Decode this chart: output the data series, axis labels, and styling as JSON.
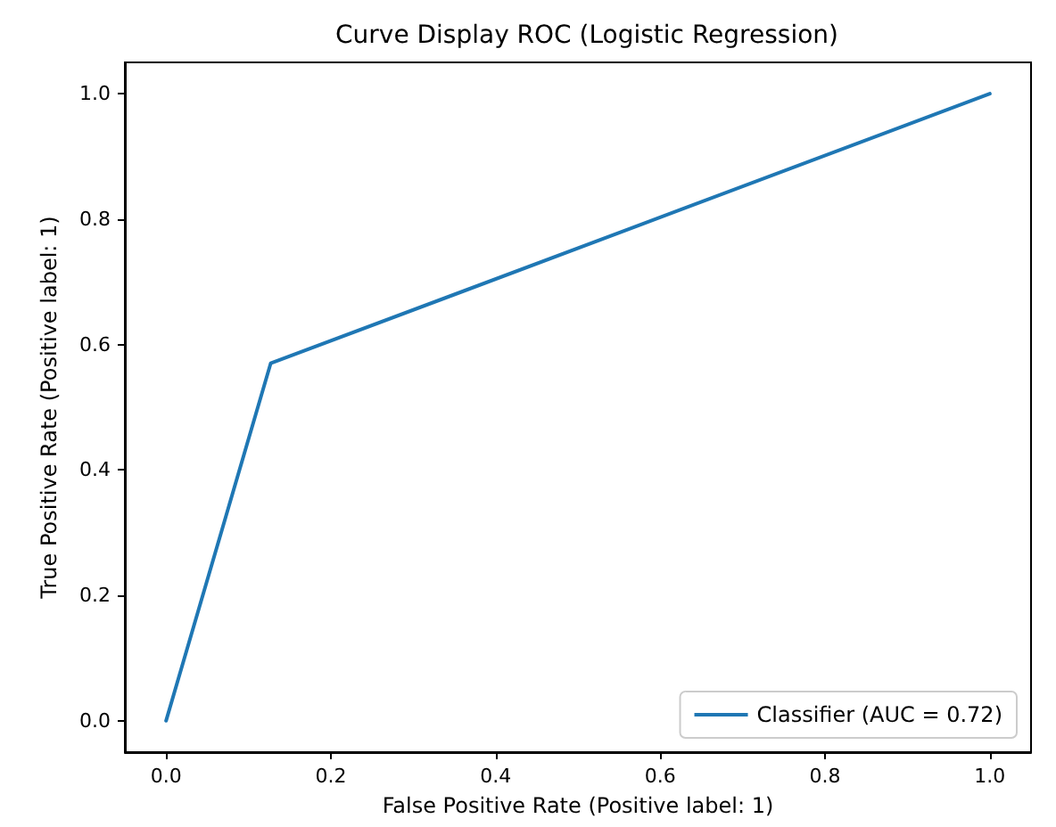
{
  "chart_data": {
    "type": "line",
    "title": "Curve Display ROC (Logistic Regression)",
    "xlabel": "False Positive Rate (Positive label: 1)",
    "ylabel": "True Positive Rate (Positive label: 1)",
    "series": [
      {
        "name": "Classifier (AUC = 0.72)",
        "color": "#1f77b4",
        "x": [
          0,
          0.127,
          1
        ],
        "values": [
          0,
          0.57,
          1
        ]
      }
    ],
    "xlim": [
      -0.05,
      1.05
    ],
    "ylim": [
      -0.05,
      1.05
    ],
    "xticks": [
      {
        "value": 0,
        "label": "0.0"
      },
      {
        "value": 0.2,
        "label": "0.2"
      },
      {
        "value": 0.4,
        "label": "0.4"
      },
      {
        "value": 0.6,
        "label": "0.6"
      },
      {
        "value": 0.8,
        "label": "0.8"
      },
      {
        "value": 1,
        "label": "1.0"
      }
    ],
    "yticks": [
      {
        "value": 0,
        "label": "0.0"
      },
      {
        "value": 0.2,
        "label": "0.2"
      },
      {
        "value": 0.4,
        "label": "0.4"
      },
      {
        "value": 0.6,
        "label": "0.6"
      },
      {
        "value": 0.8,
        "label": "0.8"
      },
      {
        "value": 1,
        "label": "1.0"
      }
    ],
    "grid": false,
    "legend": "bottom right",
    "marker": "none",
    "line_style": "solid"
  }
}
